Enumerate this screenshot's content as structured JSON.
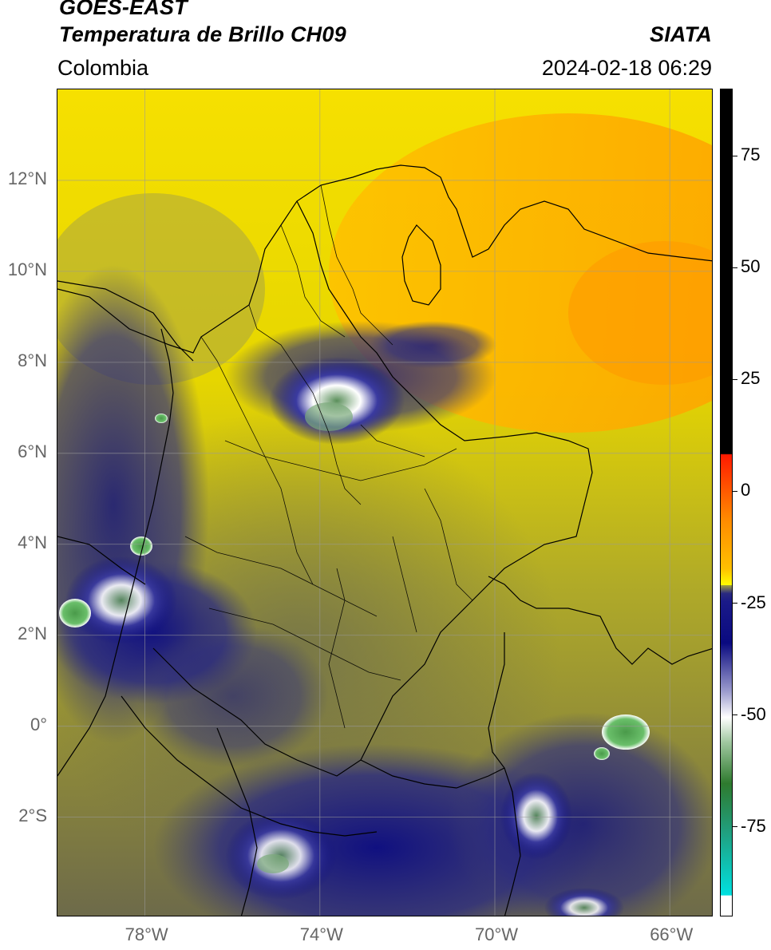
{
  "header": {
    "satellite": "GOES-EAST",
    "product": "Temperatura de Brillo CH09",
    "region": "Colombia",
    "brand": "SIATA",
    "timestamp": "2024-02-18 06:29"
  },
  "map": {
    "lat_range": [
      -4.2,
      14.0
    ],
    "lon_range": [
      -80.0,
      -65.0
    ],
    "lat_ticks": [
      "12°N",
      "10°N",
      "8°N",
      "6°N",
      "4°N",
      "2°N",
      "0°",
      "2°S"
    ],
    "lat_values": [
      12,
      10,
      8,
      6,
      4,
      2,
      0,
      -2
    ],
    "lon_ticks": [
      "78°W",
      "74°W",
      "70°W",
      "66°W"
    ],
    "lon_values": [
      -78,
      -74,
      -70,
      -66
    ],
    "gridlines": true
  },
  "colorbar": {
    "range": [
      -95,
      90
    ],
    "labels": [
      "75",
      "50",
      "25",
      "0",
      "-25",
      "-50",
      "-75"
    ],
    "values": [
      75,
      50,
      25,
      0,
      -25,
      -50,
      -75
    ],
    "colors": {
      "warm_black": "#000000",
      "red": "#ff2000",
      "orange": "#ff9d00",
      "yellow": "#ffff00",
      "olive": "#8a8a40",
      "navy": "#0a0a80",
      "white": "#ffffff",
      "green": "#3a8a3a",
      "cyan": "#00e0e0"
    }
  }
}
